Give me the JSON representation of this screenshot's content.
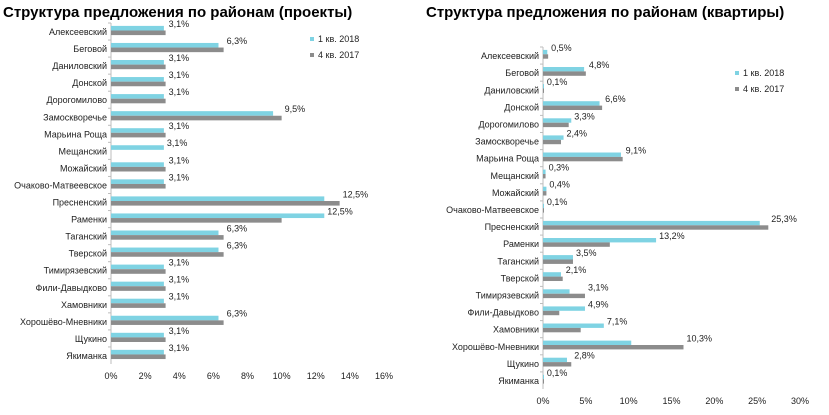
{
  "colors": {
    "q1_2018": "#7fd3e3",
    "q4_2017": "#8c8c8c",
    "axis": "#bdbdbd"
  },
  "chart_data": [
    {
      "type": "bar",
      "orientation": "horizontal",
      "title": "Структура предложения по районам (проекты)",
      "categories": [
        "Алексеевский",
        "Беговой",
        "Даниловский",
        "Донской",
        "Дорогомилово",
        "Замоскворечье",
        "Марьина Роща",
        "Мещанский",
        "Можайский",
        "Очаково-Матвеевское",
        "Пресненский",
        "Раменки",
        "Таганский",
        "Тверской",
        "Тимирязевский",
        "Фили-Давыдково",
        "Хамовники",
        "Хорошёво-Мневники",
        "Щукино",
        "Якиманка"
      ],
      "series": [
        {
          "name": "1 кв. 2018",
          "values": [
            3.1,
            6.3,
            3.1,
            3.1,
            3.1,
            9.5,
            3.1,
            3.1,
            3.1,
            3.1,
            12.5,
            12.5,
            6.3,
            6.3,
            3.1,
            3.1,
            3.1,
            6.3,
            3.1,
            3.1
          ]
        },
        {
          "name": "4 кв. 2017",
          "values": [
            3.2,
            6.6,
            3.2,
            3.2,
            3.2,
            10.0,
            3.2,
            0,
            3.2,
            3.2,
            13.4,
            10.0,
            6.6,
            6.6,
            3.2,
            3.2,
            3.2,
            6.6,
            3.2,
            3.2
          ]
        }
      ],
      "data_labels": [
        "3,1%",
        "6,3%",
        "3,1%",
        "3,1%",
        "3,1%",
        "9,5%",
        "3,1%",
        "3,1%",
        "3,1%",
        "3,1%",
        "12,5%",
        "12,5%",
        "6,3%",
        "6,3%",
        "3,1%",
        "3,1%",
        "3,1%",
        "6,3%",
        "3,1%",
        "3,1%"
      ],
      "ticks": [
        "0%",
        "2%",
        "4%",
        "6%",
        "8%",
        "10%",
        "12%",
        "14%",
        "16%"
      ],
      "xlim": [
        0,
        16
      ],
      "grid": false,
      "legend": "top-right"
    },
    {
      "type": "bar",
      "orientation": "horizontal",
      "title": "Структура предложения по районам (квартиры)",
      "categories": [
        "Алексеевский",
        "Беговой",
        "Даниловский",
        "Донской",
        "Дорогомилово",
        "Замоскворечье",
        "Марьина Роща",
        "Мещанский",
        "Можайский",
        "Очаково-Матвеевское",
        "Пресненский",
        "Раменки",
        "Таганский",
        "Тверской",
        "Тимирязевский",
        "Фили-Давыдково",
        "Хамовники",
        "Хорошёво-Мневники",
        "Щукино",
        "Якиманка"
      ],
      "series": [
        {
          "name": "1 кв. 2018",
          "values": [
            0.5,
            4.8,
            0.1,
            6.6,
            3.3,
            2.4,
            9.1,
            0.3,
            0.4,
            0.1,
            25.3,
            13.2,
            3.5,
            2.1,
            3.1,
            4.9,
            7.1,
            10.3,
            2.8,
            0.1
          ]
        },
        {
          "name": "4 кв. 2017",
          "values": [
            0.6,
            5.0,
            0.1,
            6.9,
            3.0,
            2.1,
            9.3,
            0.3,
            0.4,
            0.1,
            26.3,
            7.8,
            3.5,
            2.3,
            4.9,
            1.9,
            4.4,
            16.4,
            3.3,
            0.1
          ]
        }
      ],
      "data_labels": [
        "0,5%",
        "4,8%",
        "0,1%",
        "6,6%",
        "3,3%",
        "2,4%",
        "9,1%",
        "0,3%",
        "0,4%",
        "0,1%",
        "25,3%",
        "13,2%",
        "3,5%",
        "2,1%",
        "3,1%",
        "4,9%",
        "7,1%",
        "10,3%",
        "2,8%",
        "0,1%"
      ],
      "ticks": [
        "0%",
        "5%",
        "10%",
        "15%",
        "20%",
        "25%",
        "30%"
      ],
      "xlim": [
        0,
        30
      ],
      "grid": false,
      "legend": "top-right"
    }
  ]
}
